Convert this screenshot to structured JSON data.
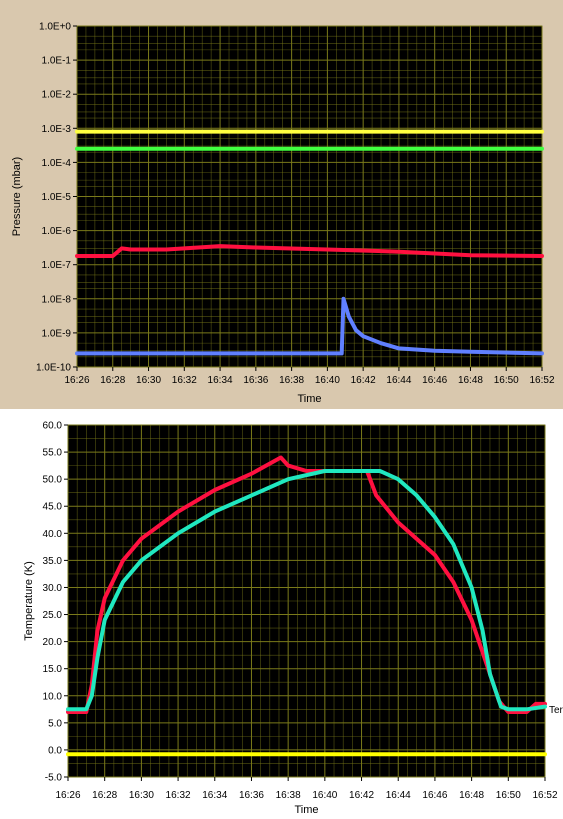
{
  "chart_data": [
    {
      "type": "line",
      "name": "pressure",
      "xlabel": "Time",
      "ylabel": "Pressure (mbar)",
      "x_ticks": [
        "16:26",
        "16:28",
        "16:30",
        "16:32",
        "16:34",
        "16:36",
        "16:38",
        "16:40",
        "16:42",
        "16:44",
        "16:46",
        "16:48",
        "16:50",
        "16:52"
      ],
      "y_ticks": [
        "1.0E+0",
        "1.0E-1",
        "1.0E-2",
        "1.0E-3",
        "1.0E-4",
        "1.0E-5",
        "1.0E-6",
        "1.0E-7",
        "1.0E-8",
        "1.0E-9",
        "1.0E-10"
      ],
      "y_scale": "log",
      "xlim": [
        "16:26",
        "16:52"
      ],
      "ylim": [
        1e-10,
        1
      ],
      "grid": true,
      "background": "#000000",
      "grid_color": "#7a7a1a",
      "series": [
        {
          "color": "#ffff40",
          "x": [
            "16:26",
            "16:52"
          ],
          "y": [
            0.0008,
            0.0008
          ]
        },
        {
          "color": "#40ff40",
          "x": [
            "16:26",
            "16:52"
          ],
          "y": [
            0.00025,
            0.00025
          ]
        },
        {
          "color": "#ff1040",
          "x": [
            "16:26",
            "16:28",
            "16:28.5",
            "16:29",
            "16:31",
            "16:34",
            "16:36",
            "16:40",
            "16:44",
            "16:48",
            "16:52"
          ],
          "y": [
            1.8e-07,
            1.8e-07,
            3e-07,
            2.8e-07,
            2.8e-07,
            3.5e-07,
            3.2e-07,
            2.8e-07,
            2.4e-07,
            1.9e-07,
            1.8e-07
          ]
        },
        {
          "color": "#6080ff",
          "x": [
            "16:26",
            "16:40.8",
            "16:40.9",
            "16:41.2",
            "16:41.6",
            "16:42",
            "16:43",
            "16:44",
            "16:46",
            "16:48",
            "16:52"
          ],
          "y": [
            2.5e-10,
            2.5e-10,
            1e-08,
            3e-09,
            1.2e-09,
            8e-10,
            5e-10,
            3.5e-10,
            3e-10,
            2.8e-10,
            2.5e-10
          ]
        }
      ]
    },
    {
      "type": "line",
      "name": "temperature",
      "xlabel": "Time",
      "ylabel": "Temperature (K)",
      "legend_fragment": "Ter",
      "x_ticks": [
        "16:26",
        "16:28",
        "16:30",
        "16:32",
        "16:34",
        "16:36",
        "16:38",
        "16:40",
        "16:42",
        "16:44",
        "16:46",
        "16:48",
        "16:50",
        "16:52"
      ],
      "y_ticks": [
        "60.0",
        "55.0",
        "50.0",
        "45.0",
        "40.0",
        "35.0",
        "30.0",
        "25.0",
        "20.0",
        "15.0",
        "10.0",
        "5.0",
        "0.0",
        "-5.0"
      ],
      "xlim": [
        "16:26",
        "16:52"
      ],
      "ylim": [
        -5,
        60
      ],
      "grid": true,
      "background": "#000000",
      "grid_color": "#7a7a1a",
      "series": [
        {
          "color": "#ff1040",
          "x": [
            "16:26",
            "16:26.6",
            "16:27",
            "16:27.3",
            "16:27.6",
            "16:28",
            "16:29",
            "16:30",
            "16:32",
            "16:34",
            "16:36",
            "16:37.6",
            "16:38",
            "16:39",
            "16:40",
            "16:42.3",
            "16:42.8",
            "16:44",
            "16:46",
            "16:47",
            "16:48",
            "16:49",
            "16:49.5",
            "16:50",
            "16:51",
            "16:51.5",
            "16:52"
          ],
          "y": [
            7,
            7,
            7,
            12,
            22,
            28,
            35,
            39,
            44,
            48,
            51,
            54,
            52.5,
            51.5,
            51.5,
            51.5,
            47,
            42,
            36,
            31,
            24,
            14,
            9,
            7,
            7,
            8.5,
            8.5
          ]
        },
        {
          "color": "#20e8c0",
          "x": [
            "16:26",
            "16:27",
            "16:27.3",
            "16:27.6",
            "16:28",
            "16:29",
            "16:30",
            "16:32",
            "16:34",
            "16:36",
            "16:38",
            "16:40",
            "16:42",
            "16:43",
            "16:44",
            "16:45",
            "16:46",
            "16:47",
            "16:48",
            "16:48.6",
            "16:49",
            "16:49.6",
            "16:50",
            "16:51",
            "16:52"
          ],
          "y": [
            7.5,
            7.5,
            10,
            17,
            24,
            31,
            35,
            40,
            44,
            47,
            50,
            51.5,
            51.5,
            51.5,
            50,
            47,
            43,
            38,
            30,
            22,
            14,
            8,
            7.5,
            7.5,
            8
          ]
        },
        {
          "color": "#ffff00",
          "x": [
            "16:26",
            "16:52"
          ],
          "y": [
            -0.8,
            -0.8
          ]
        }
      ]
    }
  ]
}
